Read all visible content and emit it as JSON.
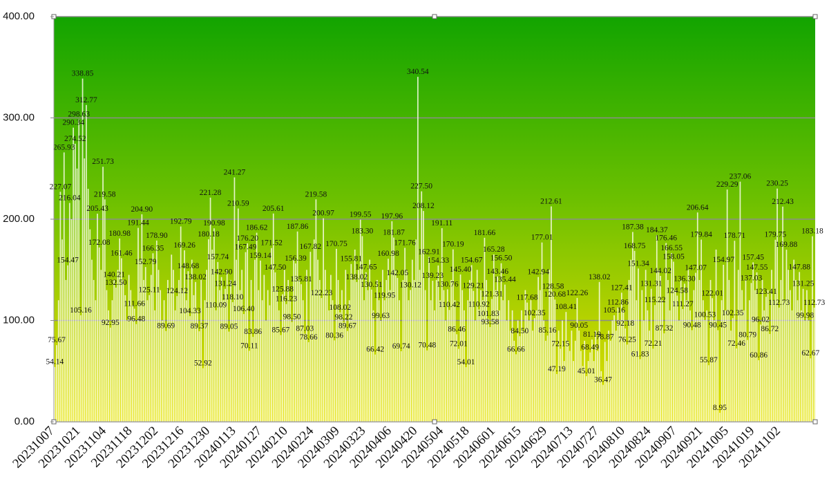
{
  "chart_data": {
    "type": "bar",
    "grid": true,
    "color": "#fffff2",
    "ylim": [
      0,
      400
    ],
    "yticks": [
      {
        "value": 0,
        "label": "0.00"
      },
      {
        "value": 100,
        "label": "100.00"
      },
      {
        "value": 200,
        "label": "200.00"
      },
      {
        "value": 300,
        "label": "300.00"
      },
      {
        "value": 400,
        "label": "400.00"
      }
    ],
    "categories": [
      "20231007",
      null,
      null,
      null,
      null,
      null,
      null,
      null,
      null,
      null,
      null,
      null,
      null,
      null,
      "20231021",
      null,
      null,
      null,
      null,
      null,
      null,
      null,
      null,
      null,
      null,
      null,
      null,
      null,
      "20231104",
      null,
      null,
      null,
      null,
      null,
      null,
      null,
      null,
      null,
      null,
      null,
      null,
      null,
      "20231118",
      null,
      null,
      null,
      null,
      null,
      null,
      null,
      null,
      null,
      null,
      null,
      null,
      null,
      "20231202",
      null,
      null,
      null,
      null,
      null,
      null,
      null,
      null,
      null,
      null,
      null,
      null,
      null,
      "20231216",
      null,
      null,
      null,
      null,
      null,
      null,
      null,
      null,
      null,
      null,
      null,
      null,
      null,
      "20231230",
      null,
      null,
      null,
      null,
      null,
      null,
      null,
      null,
      null,
      null,
      null,
      null,
      null,
      "20240113",
      null,
      null,
      null,
      null,
      null,
      null,
      null,
      null,
      null,
      null,
      null,
      null,
      null,
      "20240127",
      null,
      null,
      null,
      null,
      null,
      null,
      null,
      null,
      null,
      null,
      null,
      null,
      null,
      "20240210",
      null,
      null,
      null,
      null,
      null,
      null,
      null,
      null,
      null,
      null,
      null,
      null,
      null,
      "20240224",
      null,
      null,
      null,
      null,
      null,
      null,
      null,
      null,
      null,
      null,
      null,
      null,
      null,
      "20240309",
      null,
      null,
      null,
      null,
      null,
      null,
      null,
      null,
      null,
      null,
      null,
      null,
      null,
      "20240323",
      null,
      null,
      null,
      null,
      null,
      null,
      null,
      null,
      null,
      null,
      null,
      null,
      null,
      "20240406",
      null,
      null,
      null,
      null,
      null,
      null,
      null,
      null,
      null,
      null,
      null,
      null,
      null,
      "20240420",
      null,
      null,
      null,
      null,
      null,
      null,
      null,
      null,
      null,
      null,
      null,
      null,
      null,
      "20240504",
      null,
      null,
      null,
      null,
      null,
      null,
      null,
      null,
      null,
      null,
      null,
      null,
      null,
      "20240518",
      null,
      null,
      null,
      null,
      null,
      null,
      null,
      null,
      null,
      null,
      null,
      null,
      null,
      "20240601",
      null,
      null,
      null,
      null,
      null,
      null,
      null,
      null,
      null,
      null,
      null,
      null,
      null,
      "20240615",
      null,
      null,
      null,
      null,
      null,
      null,
      null,
      null,
      null,
      null,
      null,
      null,
      null,
      "20240629",
      null,
      null,
      null,
      null,
      null,
      null,
      null,
      null,
      null,
      null,
      null,
      null,
      null,
      "20240713",
      null,
      null,
      null,
      null,
      null,
      null,
      null,
      null,
      null,
      null,
      null,
      null,
      null,
      "20240727",
      null,
      null,
      null,
      null,
      null,
      null,
      null,
      null,
      null,
      null,
      null,
      null,
      null,
      "20240810",
      null,
      null,
      null,
      null,
      null,
      null,
      null,
      null,
      null,
      null,
      null,
      null,
      null,
      "20240824",
      null,
      null,
      null,
      null,
      null,
      null,
      null,
      null,
      null,
      null,
      null,
      null,
      null,
      "20240907",
      null,
      null,
      null,
      null,
      null,
      null,
      null,
      null,
      null,
      null,
      null,
      null,
      null,
      "20240921",
      null,
      null,
      null,
      null,
      null,
      null,
      null,
      null,
      null,
      null,
      null,
      null,
      null,
      "20241005",
      null,
      null,
      null,
      null,
      null,
      null,
      null,
      null,
      null,
      null,
      null,
      null,
      null,
      "20241019",
      null,
      null,
      null,
      null,
      null,
      null,
      null,
      null,
      null,
      null,
      null,
      null,
      null,
      "20241102",
      null,
      null,
      null,
      null,
      null,
      null,
      null,
      null,
      null,
      null,
      null,
      null,
      null,
      null,
      null,
      null,
      null,
      null
    ],
    "values": [
      54.14,
      75.67,
      120,
      227.07,
      180,
      265.93,
      140,
      154.47,
      216.04,
      200,
      290.34,
      274.52,
      250,
      298.63,
      105.16,
      338.85,
      260,
      312.77,
      230,
      190,
      160,
      140,
      120,
      205.43,
      172.08,
      150,
      251.73,
      219.58,
      130,
      110,
      92.95,
      120,
      140.21,
      132.5,
      150,
      180.98,
      161.46,
      140,
      125,
      100,
      145,
      130,
      115,
      111.66,
      96.48,
      191.44,
      160,
      204.9,
      140,
      152.79,
      120,
      125.11,
      145,
      166.35,
      110,
      178.9,
      150,
      130,
      100,
      120,
      89.69,
      140,
      130,
      165,
      150,
      110,
      124.12,
      140,
      192.79,
      130,
      169.26,
      120,
      148.68,
      104.33,
      160,
      125,
      138.02,
      110,
      89.37,
      140,
      52.92,
      120,
      150,
      180.18,
      221.28,
      170,
      190.98,
      110.09,
      157.74,
      130,
      142.9,
      120,
      131.24,
      150,
      89.05,
      140,
      118.1,
      241.27,
      160,
      210.59,
      130,
      150,
      106.4,
      167.49,
      176.2,
      70.11,
      140,
      83.86,
      160,
      186.62,
      130,
      159.14,
      120,
      145,
      100,
      130,
      115,
      171.52,
      205.61,
      147.5,
      130,
      110,
      85.67,
      125.88,
      150,
      116.23,
      140,
      120,
      98.5,
      160,
      156.39,
      187.86,
      140,
      135.81,
      120,
      87.03,
      150,
      78.66,
      167.82,
      130,
      180,
      219.58,
      160,
      140,
      122.23,
      200.97,
      150,
      130,
      110,
      145,
      120,
      80.36,
      170.75,
      140,
      108.02,
      130,
      98.22,
      150,
      89.67,
      120,
      155.81,
      140,
      170,
      138.02,
      150,
      199.55,
      183.3,
      120,
      147.65,
      130,
      160,
      130.51,
      110,
      66.42,
      140,
      120,
      99.63,
      150,
      119.95,
      140,
      160.98,
      130,
      197.96,
      181.87,
      150,
      142.05,
      120,
      69.74,
      140,
      171.76,
      150,
      120,
      130.12,
      160,
      140,
      180,
      340.54,
      150,
      227.5,
      208.12,
      130,
      70.48,
      162.91,
      120,
      139.23,
      110,
      140,
      154.33,
      120,
      191.11,
      130,
      100,
      130.76,
      110.42,
      140,
      170.19,
      120,
      86.46,
      72.01,
      145.4,
      130,
      110,
      54.01,
      120,
      140,
      154.67,
      129.21,
      100,
      150,
      110.92,
      130,
      120,
      181.66,
      140,
      101.83,
      93.58,
      121.31,
      165.28,
      130,
      143.46,
      110,
      156.5,
      120,
      135.44,
      100,
      120,
      90,
      110,
      80,
      66.66,
      100,
      84.5,
      110,
      90,
      130,
      117.68,
      100,
      120,
      90,
      102.35,
      110,
      142.94,
      130,
      177.01,
      100,
      80,
      85.16,
      150,
      212.61,
      128.58,
      120.68,
      47.19,
      90,
      72.15,
      100,
      60,
      108.41,
      80,
      70,
      90,
      60,
      80,
      122.26,
      90.05,
      70,
      55,
      80,
      45.01,
      60,
      68.49,
      81.19,
      60,
      90,
      70,
      138.02,
      50,
      36.47,
      78.87,
      60,
      90,
      80,
      100,
      105.16,
      90,
      112.86,
      100,
      127.41,
      110,
      92.18,
      76.25,
      140,
      160,
      187.38,
      168.75,
      120,
      151.34,
      61.83,
      130,
      100,
      150,
      110,
      90,
      131.31,
      72.21,
      115.22,
      184.37,
      150,
      144.02,
      120,
      87.32,
      176.46,
      140,
      110,
      166.55,
      158.05,
      130,
      124.58,
      100,
      140,
      111.27,
      136.3,
      120,
      150,
      110,
      90.48,
      130,
      147.07,
      206.64,
      140,
      179.84,
      120,
      100.53,
      110,
      55.87,
      140,
      122.01,
      100,
      170,
      90.45,
      8.95,
      120,
      154.97,
      110,
      229.29,
      140,
      90,
      102.35,
      178.71,
      72.46,
      150,
      237.06,
      130,
      110,
      140,
      80.79,
      120,
      137.03,
      157.45,
      130,
      147.55,
      60.86,
      96.02,
      140,
      110,
      123.41,
      130,
      86.72,
      150,
      120,
      179.75,
      230.25,
      112.73,
      140,
      212.43,
      120,
      169.88,
      150,
      130,
      110,
      160,
      140,
      120,
      147.88,
      110,
      131.25,
      99.98,
      130,
      100,
      62.67,
      183.18,
      112.73
    ],
    "value_labels": [
      "54.14",
      "75.67",
      null,
      "227.07",
      null,
      "265.93",
      null,
      "154.47",
      "216.04",
      null,
      "290.34",
      "274.52",
      null,
      "298.63",
      "105.16",
      "338.85",
      null,
      "312.77",
      null,
      null,
      null,
      null,
      null,
      "205.43",
      "172.08",
      null,
      "251.73",
      "219.58",
      null,
      null,
      "92.95",
      null,
      "140.21",
      "132.50",
      null,
      "180.98",
      "161.46",
      null,
      null,
      null,
      null,
      null,
      null,
      "111.66",
      "96.48",
      "191.44",
      null,
      "204.90",
      null,
      "152.79",
      null,
      "125.11",
      null,
      "166.35",
      null,
      "178.90",
      null,
      null,
      null,
      null,
      "89.69",
      null,
      null,
      null,
      null,
      null,
      "124.12",
      null,
      "192.79",
      null,
      "169.26",
      null,
      "148.68",
      "104.33",
      null,
      null,
      "138.02",
      null,
      "89.37",
      null,
      "52.92",
      null,
      null,
      "180.18",
      "221.28",
      null,
      "190.98",
      "110.09",
      "157.74",
      null,
      "142.90",
      null,
      "131.24",
      null,
      "89.05",
      null,
      "118.10",
      "241.27",
      null,
      "210.59",
      null,
      null,
      "106.40",
      "167.49",
      "176.20",
      "70.11",
      null,
      "83.86",
      null,
      "186.62",
      null,
      "159.14",
      null,
      null,
      null,
      null,
      null,
      "171.52",
      "205.61",
      "147.50",
      null,
      null,
      "85.67",
      "125.88",
      null,
      "116.23",
      null,
      null,
      "98.50",
      null,
      "156.39",
      "187.86",
      null,
      "135.81",
      null,
      "87.03",
      null,
      "78.66",
      "167.82",
      null,
      null,
      "219.58",
      null,
      null,
      "122.23",
      "200.97",
      null,
      null,
      null,
      null,
      null,
      "80.36",
      "170.75",
      null,
      "108.02",
      null,
      "98.22",
      null,
      "89.67",
      null,
      "155.81",
      null,
      null,
      "138.02",
      null,
      "199.55",
      "183.30",
      null,
      "147.65",
      null,
      null,
      "130.51",
      null,
      "66.42",
      null,
      null,
      "99.63",
      null,
      "119.95",
      null,
      "160.98",
      null,
      "197.96",
      "181.87",
      null,
      "142.05",
      null,
      "69.74",
      null,
      "171.76",
      null,
      null,
      "130.12",
      null,
      null,
      null,
      "340.54",
      null,
      "227.50",
      "208.12",
      null,
      "70.48",
      "162.91",
      null,
      "139.23",
      null,
      null,
      "154.33",
      null,
      "191.11",
      null,
      null,
      "130.76",
      "110.42",
      null,
      "170.19",
      null,
      "86.46",
      "72.01",
      "145.40",
      null,
      null,
      "54.01",
      null,
      null,
      "154.67",
      "129.21",
      null,
      null,
      "110.92",
      null,
      null,
      "181.66",
      null,
      "101.83",
      "93.58",
      "121.31",
      "165.28",
      null,
      "143.46",
      null,
      "156.50",
      null,
      "135.44",
      null,
      null,
      null,
      null,
      null,
      "66.66",
      null,
      "84.50",
      null,
      null,
      null,
      "117.68",
      null,
      null,
      null,
      "102.35",
      null,
      "142.94",
      null,
      "177.01",
      null,
      null,
      "85.16",
      null,
      "212.61",
      "128.58",
      "120.68",
      "47.19",
      null,
      "72.15",
      null,
      null,
      "108.41",
      null,
      null,
      null,
      null,
      null,
      "122.26",
      "90.05",
      null,
      null,
      null,
      "45.01",
      null,
      "68.49",
      "81.19",
      null,
      null,
      null,
      "138.02",
      null,
      "36.47",
      "78.87",
      null,
      null,
      null,
      null,
      "105.16",
      null,
      "112.86",
      null,
      "127.41",
      null,
      "92.18",
      "76.25",
      null,
      null,
      "187.38",
      "168.75",
      null,
      "151.34",
      "61.83",
      null,
      null,
      null,
      null,
      null,
      "131.31",
      "72.21",
      "115.22",
      "184.37",
      null,
      "144.02",
      null,
      "87.32",
      "176.46",
      null,
      null,
      "166.55",
      "158.05",
      null,
      "124.58",
      null,
      null,
      "111.27",
      "136.30",
      null,
      null,
      null,
      "90.48",
      null,
      "147.07",
      "206.64",
      null,
      "179.84",
      null,
      "100.53",
      null,
      "55.87",
      null,
      "122.01",
      null,
      null,
      "90.45",
      "8.95",
      null,
      "154.97",
      null,
      "229.29",
      null,
      null,
      "102.35",
      "178.71",
      "72.46",
      null,
      "237.06",
      null,
      null,
      null,
      "80.79",
      null,
      "137.03",
      "157.45",
      null,
      "147.55",
      "60.86",
      "96.02",
      null,
      null,
      "123.41",
      null,
      "86.72",
      null,
      null,
      "179.75",
      "230.25",
      "112.73",
      null,
      "212.43",
      null,
      "169.88",
      null,
      null,
      null,
      null,
      null,
      null,
      "147.88",
      null,
      "131.25",
      "99.98",
      null,
      null,
      "62.67",
      "183.18",
      "112.73"
    ]
  }
}
